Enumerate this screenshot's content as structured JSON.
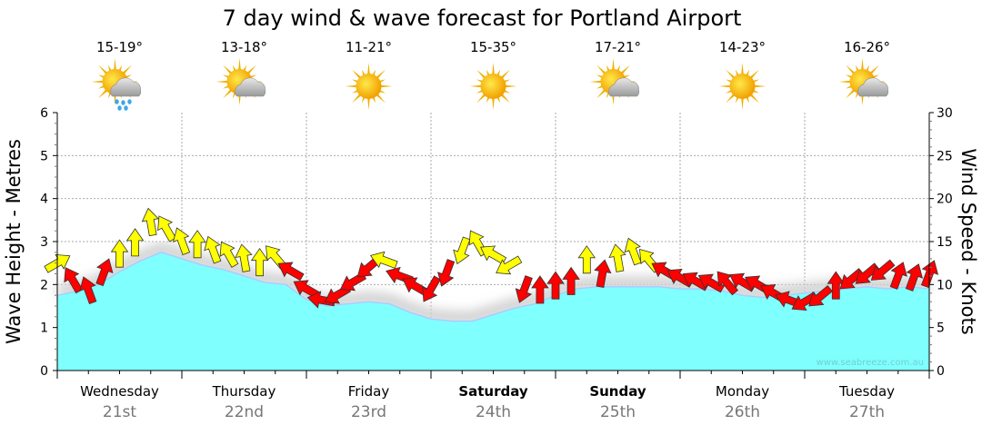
{
  "chart_data": {
    "type": "area",
    "title": "7 day wind & wave forecast for Portland Airport",
    "ylabel_left": "Wave Height - Metres",
    "ylabel_right": "Wind Speed - Knots",
    "ylim_left": [
      0,
      6
    ],
    "ylim_right": [
      0,
      30
    ],
    "yticks_left": [
      "0",
      "1",
      "2",
      "3",
      "4",
      "5",
      "6"
    ],
    "yticks_right": [
      "0",
      "5",
      "10",
      "15",
      "20",
      "25",
      "30"
    ],
    "grid": true,
    "days": [
      {
        "day": "Wednesday",
        "date": "21st",
        "temp": "15-19°",
        "icon": "sun-cloud-rain-icon",
        "bold": false
      },
      {
        "day": "Thursday",
        "date": "22nd",
        "temp": "13-18°",
        "icon": "sun-cloud-icon",
        "bold": false
      },
      {
        "day": "Friday",
        "date": "23rd",
        "temp": "11-21°",
        "icon": "sun-icon",
        "bold": false
      },
      {
        "day": "Saturday",
        "date": "24th",
        "temp": "15-35°",
        "icon": "sun-icon",
        "bold": true
      },
      {
        "day": "Sunday",
        "date": "25th",
        "temp": "17-21°",
        "icon": "sun-cloud-icon",
        "bold": true
      },
      {
        "day": "Monday",
        "date": "26th",
        "temp": "14-23°",
        "icon": "sun-icon",
        "bold": false
      },
      {
        "day": "Tuesday",
        "date": "27th",
        "temp": "16-26°",
        "icon": "sun-cloud-icon",
        "bold": false
      }
    ],
    "wave_height_m": [
      1.75,
      1.85,
      2.0,
      2.3,
      2.55,
      2.75,
      2.6,
      2.45,
      2.35,
      2.2,
      2.05,
      2.0,
      1.65,
      1.5,
      1.55,
      1.6,
      1.55,
      1.35,
      1.2,
      1.15,
      1.15,
      1.3,
      1.45,
      1.55,
      1.75,
      1.9,
      1.95,
      1.95,
      1.95,
      1.95,
      1.9,
      1.9,
      1.85,
      1.75,
      1.7,
      1.75,
      1.8,
      1.85,
      1.9,
      1.95,
      1.9,
      1.95,
      1.9
    ],
    "wave_interval_hours": 4,
    "wind_interval_hours": 3,
    "wind": [
      {
        "kts": 12.5,
        "dir": 60,
        "color": "#ffff00"
      },
      {
        "kts": 10.5,
        "dir": 330,
        "color": "#ff0000"
      },
      {
        "kts": 9.3,
        "dir": 340,
        "color": "#ff0000"
      },
      {
        "kts": 11.4,
        "dir": 20,
        "color": "#ff0000"
      },
      {
        "kts": 13.5,
        "dir": 0,
        "color": "#ffff00"
      },
      {
        "kts": 14.8,
        "dir": 0,
        "color": "#ffff00"
      },
      {
        "kts": 17.2,
        "dir": 350,
        "color": "#ffff00"
      },
      {
        "kts": 16.5,
        "dir": 330,
        "color": "#ffff00"
      },
      {
        "kts": 15,
        "dir": 340,
        "color": "#ffff00"
      },
      {
        "kts": 14.6,
        "dir": 0,
        "color": "#ffff00"
      },
      {
        "kts": 14,
        "dir": 340,
        "color": "#ffff00"
      },
      {
        "kts": 13.5,
        "dir": 330,
        "color": "#ffff00"
      },
      {
        "kts": 13,
        "dir": 350,
        "color": "#ffff00"
      },
      {
        "kts": 12.5,
        "dir": 0,
        "color": "#ffff00"
      },
      {
        "kts": 13.2,
        "dir": 320,
        "color": "#ffff00"
      },
      {
        "kts": 11.6,
        "dir": 300,
        "color": "#ff0000"
      },
      {
        "kts": 9.5,
        "dir": 300,
        "color": "#ff0000"
      },
      {
        "kts": 8.2,
        "dir": 280,
        "color": "#ff0000"
      },
      {
        "kts": 8.8,
        "dir": 240,
        "color": "#ff0000"
      },
      {
        "kts": 10.3,
        "dir": 240,
        "color": "#ff0000"
      },
      {
        "kts": 12,
        "dir": 230,
        "color": "#ff0000"
      },
      {
        "kts": 12.8,
        "dir": 290,
        "color": "#ffff00"
      },
      {
        "kts": 11,
        "dir": 290,
        "color": "#ff0000"
      },
      {
        "kts": 9.8,
        "dir": 300,
        "color": "#ff0000"
      },
      {
        "kts": 9.5,
        "dir": 210,
        "color": "#ff0000"
      },
      {
        "kts": 11.4,
        "dir": 200,
        "color": "#ff0000"
      },
      {
        "kts": 14,
        "dir": 200,
        "color": "#ffff00"
      },
      {
        "kts": 14.8,
        "dir": 330,
        "color": "#ffff00"
      },
      {
        "kts": 13.5,
        "dir": 300,
        "color": "#ffff00"
      },
      {
        "kts": 12.2,
        "dir": 240,
        "color": "#ffff00"
      },
      {
        "kts": 9.5,
        "dir": 200,
        "color": "#ff0000"
      },
      {
        "kts": 9.3,
        "dir": 0,
        "color": "#ff0000"
      },
      {
        "kts": 9.8,
        "dir": 0,
        "color": "#ff0000"
      },
      {
        "kts": 10.3,
        "dir": 0,
        "color": "#ff0000"
      },
      {
        "kts": 12.8,
        "dir": 0,
        "color": "#ffff00"
      },
      {
        "kts": 11.2,
        "dir": 10,
        "color": "#ff0000"
      },
      {
        "kts": 13,
        "dir": 350,
        "color": "#ffff00"
      },
      {
        "kts": 13.8,
        "dir": 340,
        "color": "#ffff00"
      },
      {
        "kts": 12.8,
        "dir": 320,
        "color": "#ffff00"
      },
      {
        "kts": 11.6,
        "dir": 300,
        "color": "#ff0000"
      },
      {
        "kts": 10.8,
        "dir": 300,
        "color": "#ff0000"
      },
      {
        "kts": 10.4,
        "dir": 300,
        "color": "#ff0000"
      },
      {
        "kts": 10.2,
        "dir": 300,
        "color": "#ff0000"
      },
      {
        "kts": 10.2,
        "dir": 320,
        "color": "#ff0000"
      },
      {
        "kts": 10.3,
        "dir": 300,
        "color": "#ff0000"
      },
      {
        "kts": 10,
        "dir": 300,
        "color": "#ff0000"
      },
      {
        "kts": 9,
        "dir": 300,
        "color": "#ff0000"
      },
      {
        "kts": 8.2,
        "dir": 290,
        "color": "#ff0000"
      },
      {
        "kts": 8,
        "dir": 240,
        "color": "#ff0000"
      },
      {
        "kts": 8.6,
        "dir": 230,
        "color": "#ff0000"
      },
      {
        "kts": 9.8,
        "dir": 0,
        "color": "#ff0000"
      },
      {
        "kts": 10.6,
        "dir": 230,
        "color": "#ff0000"
      },
      {
        "kts": 11.2,
        "dir": 230,
        "color": "#ff0000"
      },
      {
        "kts": 11.6,
        "dir": 230,
        "color": "#ff0000"
      },
      {
        "kts": 11,
        "dir": 20,
        "color": "#ff0000"
      },
      {
        "kts": 10.8,
        "dir": 20,
        "color": "#ff0000"
      },
      {
        "kts": 11.2,
        "dir": 20,
        "color": "#ff0000"
      }
    ],
    "colors": {
      "wave_fill": "#80ffff",
      "wave_line": "#aaccff",
      "grid": "#aaaaaa"
    },
    "watermark": "www.seabreeze.com.au"
  }
}
